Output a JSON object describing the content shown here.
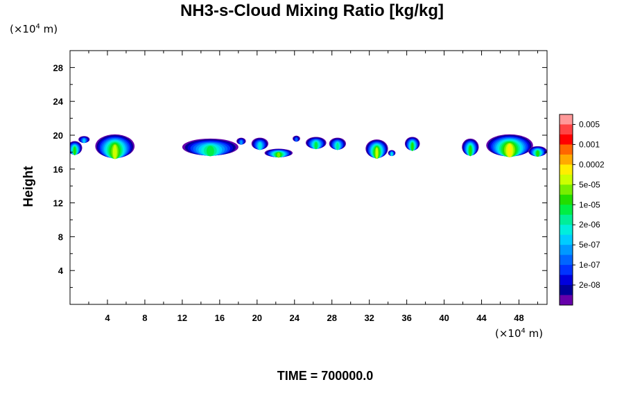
{
  "chart_data": {
    "type": "heatmap",
    "title": "NH3-s-Cloud Mixing Ratio [kg/kg]",
    "xunit_prefix": "(×10",
    "xunit_exp": "4",
    "xunit_suffix": " m)",
    "yunit_prefix": "(×10",
    "yunit_exp": "4",
    "yunit_suffix": " m)",
    "ylabel": "Height",
    "xlim": [
      0,
      51
    ],
    "ylim": [
      0,
      30
    ],
    "xticks": [
      4,
      8,
      12,
      16,
      20,
      24,
      28,
      32,
      36,
      40,
      44,
      48
    ],
    "yticks": [
      4,
      8,
      12,
      16,
      20,
      24,
      28
    ],
    "colorbar": {
      "labels": [
        "0.005",
        "0.001",
        "0.0002",
        "5e-05",
        "1e-05",
        "2e-06",
        "5e-07",
        "1e-07",
        "2e-08"
      ],
      "colors": [
        "#ff9999",
        "#ff4444",
        "#ff0000",
        "#ff6600",
        "#ffaa00",
        "#ffee00",
        "#ccff00",
        "#77ee00",
        "#22dd00",
        "#00ee44",
        "#00ee99",
        "#00eedd",
        "#00ccff",
        "#0099ff",
        "#0066ff",
        "#0033ff",
        "#0000dd",
        "#000099",
        "#6600aa"
      ]
    },
    "clouds": [
      {
        "x": 0.5,
        "y": 18.5,
        "w": 1.6,
        "h": 1.6,
        "peak": 8
      },
      {
        "x": 1.5,
        "y": 19.5,
        "w": 1.2,
        "h": 0.8,
        "peak": 12
      },
      {
        "x": 4.8,
        "y": 18.7,
        "w": 4.2,
        "h": 2.8,
        "peak": 6
      },
      {
        "x": 15.0,
        "y": 18.6,
        "w": 6.0,
        "h": 2.0,
        "peak": 9
      },
      {
        "x": 18.3,
        "y": 19.3,
        "w": 1.0,
        "h": 0.8,
        "peak": 13
      },
      {
        "x": 20.3,
        "y": 19.0,
        "w": 1.8,
        "h": 1.4,
        "peak": 11
      },
      {
        "x": 22.3,
        "y": 17.9,
        "w": 3.0,
        "h": 1.0,
        "peak": 7
      },
      {
        "x": 24.2,
        "y": 19.6,
        "w": 0.8,
        "h": 0.7,
        "peak": 14
      },
      {
        "x": 26.3,
        "y": 19.1,
        "w": 2.2,
        "h": 1.4,
        "peak": 9
      },
      {
        "x": 28.6,
        "y": 19.0,
        "w": 1.8,
        "h": 1.4,
        "peak": 10
      },
      {
        "x": 32.8,
        "y": 18.4,
        "w": 2.4,
        "h": 2.2,
        "peak": 6
      },
      {
        "x": 34.4,
        "y": 17.9,
        "w": 0.8,
        "h": 0.7,
        "peak": 11
      },
      {
        "x": 36.6,
        "y": 19.0,
        "w": 1.6,
        "h": 1.6,
        "peak": 8
      },
      {
        "x": 42.8,
        "y": 18.6,
        "w": 1.8,
        "h": 2.0,
        "peak": 8
      },
      {
        "x": 47.0,
        "y": 18.8,
        "w": 5.0,
        "h": 2.6,
        "peak": 5
      },
      {
        "x": 50.0,
        "y": 18.1,
        "w": 2.0,
        "h": 1.2,
        "peak": 8
      }
    ]
  },
  "footer": {
    "time_label": "TIME = 700000.0"
  }
}
